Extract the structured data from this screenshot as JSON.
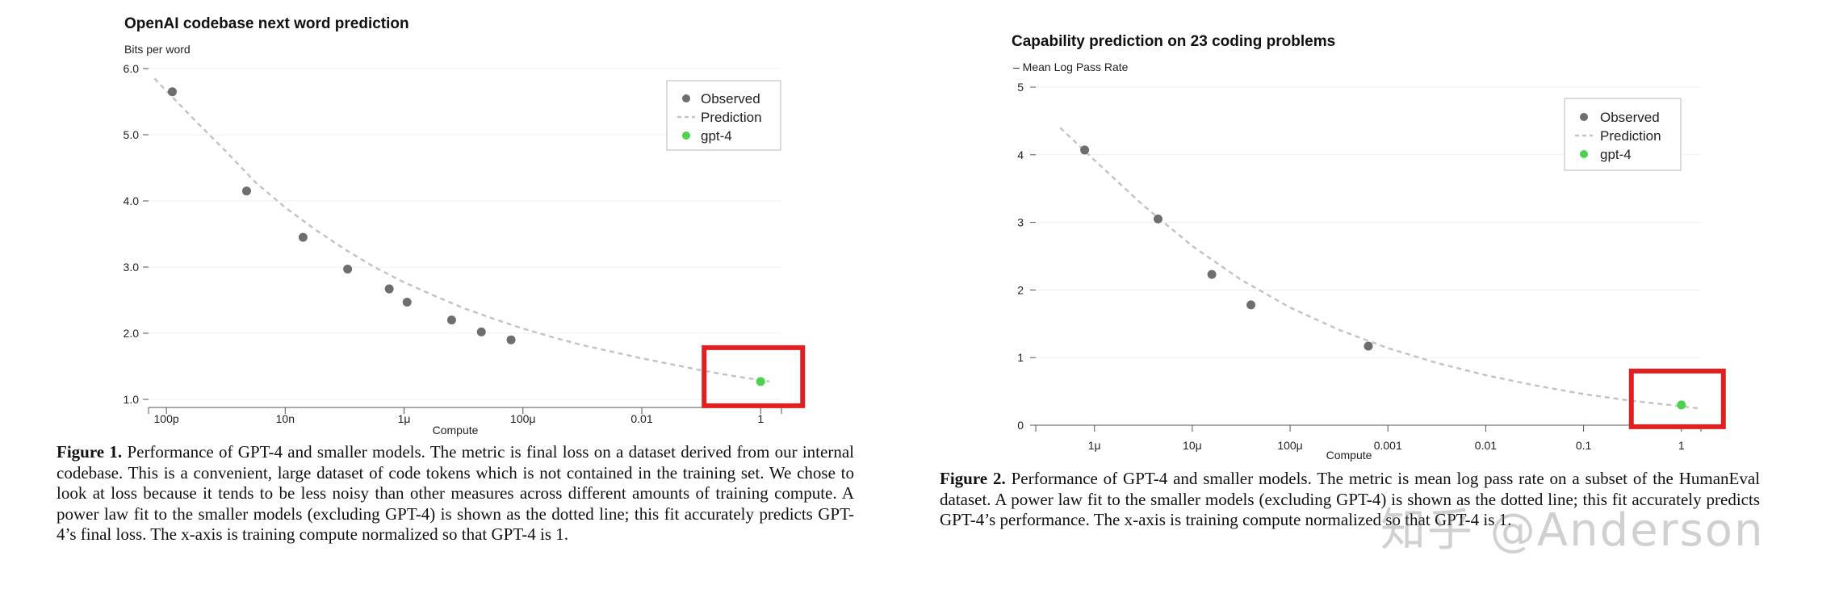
{
  "chart_data": [
    {
      "type": "scatter",
      "title": "OpenAI codebase next word prediction",
      "ylabel": "Bits per word",
      "xlabel": "Compute",
      "x_scale": "log",
      "xlim_log10": [
        -10.3,
        0.35
      ],
      "ylim": [
        1.0,
        6.0
      ],
      "y_ticks": [
        1.0,
        2.0,
        3.0,
        4.0,
        5.0,
        6.0
      ],
      "y_tick_labels": [
        "1.0",
        "2.0",
        "3.0",
        "4.0",
        "5.0",
        "6.0"
      ],
      "x_ticks_log10": [
        -10,
        -8,
        -6,
        -4,
        -2,
        0
      ],
      "x_tick_labels": [
        "100p",
        "10n",
        "1μ",
        "100μ",
        "0.01",
        "1"
      ],
      "legend": {
        "position": "top-right",
        "entries": [
          "Observed",
          "Prediction",
          "gpt-4"
        ]
      },
      "series": [
        {
          "name": "Observed",
          "color": "#6e6e6e",
          "x_log10": [
            -9.9,
            -8.65,
            -7.7,
            -6.95,
            -6.25,
            -5.95,
            -5.2,
            -4.7,
            -4.2
          ],
          "y": [
            5.65,
            4.15,
            3.45,
            2.97,
            2.67,
            2.47,
            2.2,
            2.02,
            1.9
          ]
        },
        {
          "name": "Prediction",
          "color": "#c4c4c4",
          "dashed": true,
          "x_log10": [
            -10.2,
            -9.5,
            -9.0,
            -8.5,
            -8.0,
            -7.5,
            -7.0,
            -6.5,
            -6.0,
            -5.5,
            -5.0,
            -4.5,
            -4.0,
            -3.5,
            -3.0,
            -2.5,
            -2.0,
            -1.5,
            -1.0,
            -0.5,
            0.0,
            0.15
          ],
          "y": [
            5.85,
            5.2,
            4.75,
            4.28,
            3.9,
            3.57,
            3.27,
            3.0,
            2.77,
            2.57,
            2.38,
            2.22,
            2.07,
            1.94,
            1.82,
            1.72,
            1.62,
            1.53,
            1.44,
            1.36,
            1.29,
            1.27
          ]
        },
        {
          "name": "gpt-4",
          "color": "#4cd34c",
          "x_log10": [
            0.0
          ],
          "y": [
            1.27
          ]
        }
      ],
      "highlight_box_color": "#e02020"
    },
    {
      "type": "scatter",
      "title": "Capability prediction on 23 coding problems",
      "ylabel": "– Mean Log Pass Rate",
      "xlabel": "Compute",
      "x_scale": "log",
      "xlim_log10": [
        -6.6,
        0.2
      ],
      "ylim": [
        0,
        5
      ],
      "y_ticks": [
        0,
        1,
        2,
        3,
        4,
        5
      ],
      "y_tick_labels": [
        "0",
        "1",
        "2",
        "3",
        "4",
        "5"
      ],
      "x_ticks_log10": [
        -6,
        -5,
        -4,
        -3,
        -2,
        -1,
        0
      ],
      "x_tick_labels": [
        "1μ",
        "10μ",
        "100μ",
        "0.001",
        "0.01",
        "0.1",
        "1"
      ],
      "legend": {
        "position": "top-right",
        "entries": [
          "Observed",
          "Prediction",
          "gpt-4"
        ]
      },
      "series": [
        {
          "name": "Observed",
          "color": "#6e6e6e",
          "x_log10": [
            -6.1,
            -5.35,
            -4.8,
            -4.4,
            -3.2
          ],
          "y": [
            4.07,
            3.05,
            2.23,
            1.78,
            1.17
          ]
        },
        {
          "name": "Prediction",
          "color": "#c4c4c4",
          "dashed": true,
          "x_log10": [
            -6.35,
            -6.0,
            -5.5,
            -5.0,
            -4.5,
            -4.0,
            -3.5,
            -3.0,
            -2.5,
            -2.0,
            -1.5,
            -1.0,
            -0.5,
            0.0,
            0.17
          ],
          "y": [
            4.4,
            3.92,
            3.25,
            2.65,
            2.15,
            1.74,
            1.41,
            1.14,
            0.92,
            0.74,
            0.59,
            0.46,
            0.36,
            0.28,
            0.25
          ]
        },
        {
          "name": "gpt-4",
          "color": "#4cd34c",
          "x_log10": [
            0.0
          ],
          "y": [
            0.3
          ]
        }
      ],
      "highlight_box_color": "#e02020"
    }
  ],
  "captions": {
    "fig1_label": "Figure 1.",
    "fig1_text": "Performance of GPT-4 and smaller models. The metric is final loss on a dataset derived from our internal codebase. This is a convenient, large dataset of code tokens which is not contained in the training set. We chose to look at loss because it tends to be less noisy than other measures across different amounts of training compute. A power law fit to the smaller models (excluding GPT-4) is shown as the dotted line; this fit accurately predicts GPT-4’s final loss. The x-axis is training compute normalized so that GPT-4 is 1.",
    "fig2_label": "Figure 2.",
    "fig2_text": "Performance of GPT-4 and smaller models. The metric is mean log pass rate on a subset of the HumanEval dataset. A power law fit to the smaller models (excluding GPT-4) is shown as the dotted line; this fit accurately predicts GPT-4’s performance. The x-axis is training compute normalized so that GPT-4 is 1."
  },
  "watermark": "知乎 @Anderson"
}
